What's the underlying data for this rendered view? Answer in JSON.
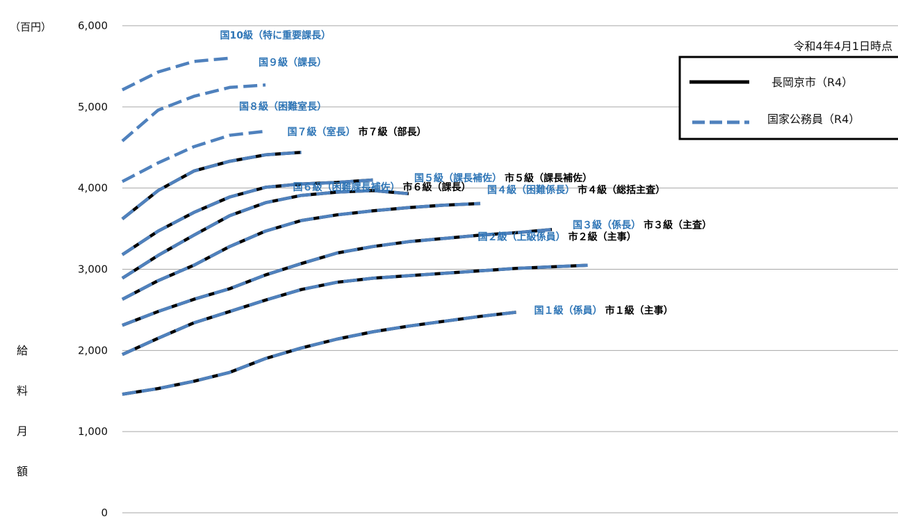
{
  "chart_data": {
    "type": "line",
    "unit_label": "（百円）",
    "ylabel": "給料月額",
    "date_note": "令和4年4月1日時点",
    "ylim": [
      0,
      6000
    ],
    "yticks": [
      0,
      1000,
      2000,
      3000,
      4000,
      5000,
      6000
    ],
    "ytick_labels": [
      "0",
      "1,000",
      "2,000",
      "3,000",
      "4,000",
      "5,000",
      "6,000"
    ],
    "grid": true,
    "legend_position": "top-right",
    "legend": [
      {
        "name": "長岡京市（R4）",
        "color": "#000000",
        "style": "solid"
      },
      {
        "name": "国家公務員（R4）",
        "color": "#4f81bd",
        "style": "dashed"
      }
    ],
    "colors": {
      "city": "#000000",
      "national": "#4f81bd",
      "national_label": "#2e75b6",
      "grid": "#a6a6a6"
    },
    "series": [
      {
        "grade": 1,
        "national_label": "国１級（係員）",
        "city_label": "市１級（主事）",
        "y": [
          1460,
          1530,
          1620,
          1730,
          1900,
          2030,
          2140,
          2230,
          2300,
          2360,
          2420,
          2470
        ]
      },
      {
        "grade": 2,
        "national_label": "国２級（上級係員）",
        "city_label": "市２級（主事）",
        "y": [
          1950,
          2150,
          2340,
          2480,
          2620,
          2750,
          2840,
          2890,
          2920,
          2950,
          2980,
          3010,
          3030,
          3050
        ]
      },
      {
        "grade": 3,
        "national_label": "国３級（係長）",
        "city_label": "市３級（主査）",
        "y": [
          2310,
          2480,
          2630,
          2760,
          2930,
          3070,
          3200,
          3280,
          3340,
          3380,
          3420,
          3450,
          3490
        ]
      },
      {
        "grade": 4,
        "national_label": "国４級（困難係長）",
        "city_label": "市４級（総括主査）",
        "y": [
          2630,
          2860,
          3050,
          3280,
          3470,
          3600,
          3670,
          3720,
          3760,
          3790,
          3810
        ]
      },
      {
        "grade": 5,
        "national_label": "国５級（課長補佐）",
        "city_label": "市５級（課長補佐）",
        "y": [
          2890,
          3170,
          3420,
          3660,
          3820,
          3910,
          3950,
          3970,
          3930
        ]
      },
      {
        "grade": 6,
        "national_label": "国６級（困難課長補佐）",
        "city_label": "市６級（課長）",
        "y": [
          3180,
          3470,
          3700,
          3890,
          4010,
          4050,
          4070,
          4100
        ]
      },
      {
        "grade": 7,
        "national_label": "国７級（室長）",
        "city_label": "市７級（部長）",
        "y": [
          3620,
          3970,
          4210,
          4330,
          4410,
          4440
        ]
      },
      {
        "grade": 8,
        "national_label": "国８級（困難室長）",
        "city_label": "",
        "y": [
          4080,
          4310,
          4510,
          4650,
          4700
        ]
      },
      {
        "grade": 9,
        "national_label": "国９級（課長）",
        "city_label": "",
        "y": [
          4580,
          4960,
          5130,
          5240,
          5270
        ]
      },
      {
        "grade": 10,
        "national_label": "国10級（特に重要課長）",
        "city_label": "",
        "y": [
          5210,
          5430,
          5560,
          5600
        ]
      }
    ]
  }
}
